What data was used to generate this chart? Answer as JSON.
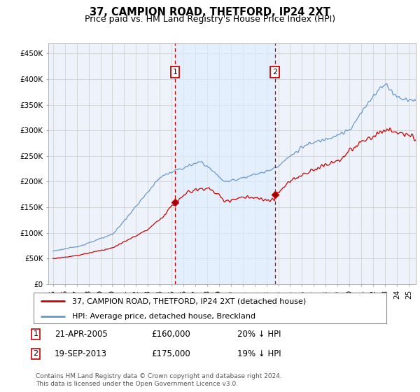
{
  "title": "37, CAMPION ROAD, THETFORD, IP24 2XT",
  "subtitle": "Price paid vs. HM Land Registry's House Price Index (HPI)",
  "ylabel_ticks": [
    "£0",
    "£50K",
    "£100K",
    "£150K",
    "£200K",
    "£250K",
    "£300K",
    "£350K",
    "£400K",
    "£450K"
  ],
  "ytick_values": [
    0,
    50000,
    100000,
    150000,
    200000,
    250000,
    300000,
    350000,
    400000,
    450000
  ],
  "ylim": [
    0,
    470000
  ],
  "xlim_start": 1994.6,
  "xlim_end": 2025.6,
  "sale1_x": 2005.3,
  "sale1_y": 160000,
  "sale2_x": 2013.72,
  "sale2_y": 175000,
  "legend_entry1": "37, CAMPION ROAD, THETFORD, IP24 2XT (detached house)",
  "legend_entry2": "HPI: Average price, detached house, Breckland",
  "annotation1_date": "21-APR-2005",
  "annotation1_price": "£160,000",
  "annotation1_hpi": "20% ↓ HPI",
  "annotation2_date": "19-SEP-2013",
  "annotation2_price": "£175,000",
  "annotation2_hpi": "19% ↓ HPI",
  "footer": "Contains HM Land Registry data © Crown copyright and database right 2024.\nThis data is licensed under the Open Government Licence v3.0.",
  "line_color_red": "#cc0000",
  "line_color_blue": "#6699cc",
  "background_color": "#ffffff",
  "plot_bg_color": "#eef2fa",
  "grid_color": "#cccccc",
  "title_fontsize": 10.5,
  "subtitle_fontsize": 9,
  "tick_fontsize": 7.5
}
